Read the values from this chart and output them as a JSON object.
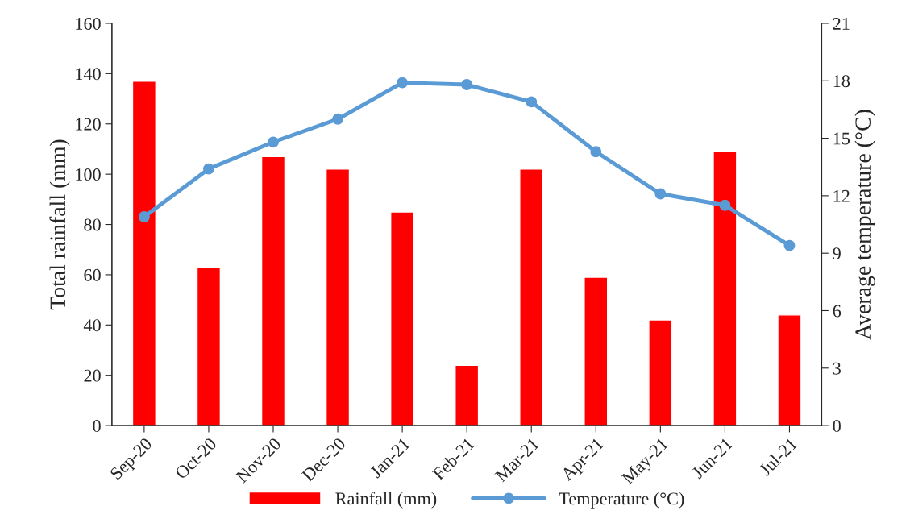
{
  "chart_data": {
    "type": "bar",
    "categories": [
      "Sep-20",
      "Oct-20",
      "Nov-20",
      "Dec-20",
      "Jan-21",
      "Feb-21",
      "Mar-21",
      "Apr-21",
      "May-21",
      "Jun-21",
      "Jul-21"
    ],
    "series": [
      {
        "name": "Rainfall (mm)",
        "color": "#ff0000",
        "values": [
          137,
          63,
          107,
          102,
          85,
          24,
          102,
          59,
          42,
          109,
          44
        ]
      },
      {
        "name": "Temperature (°C)",
        "type": "line",
        "axis": "y2",
        "color": "#5b9bd5",
        "marker": "circle",
        "values": [
          10.9,
          13.4,
          14.8,
          16.0,
          17.9,
          17.8,
          16.9,
          14.3,
          12.1,
          11.5,
          9.4
        ]
      }
    ],
    "ylabel": "Total rainfall (mm)",
    "y2label": "Average temperature (°C)",
    "ylim": [
      0,
      160
    ],
    "yticks": [
      0,
      20,
      40,
      60,
      80,
      100,
      120,
      140,
      160
    ],
    "y2lim": [
      0,
      21
    ],
    "y2ticks": [
      0,
      3,
      6,
      9,
      12,
      15,
      18,
      21
    ],
    "grid": false,
    "legend": "bottom"
  }
}
